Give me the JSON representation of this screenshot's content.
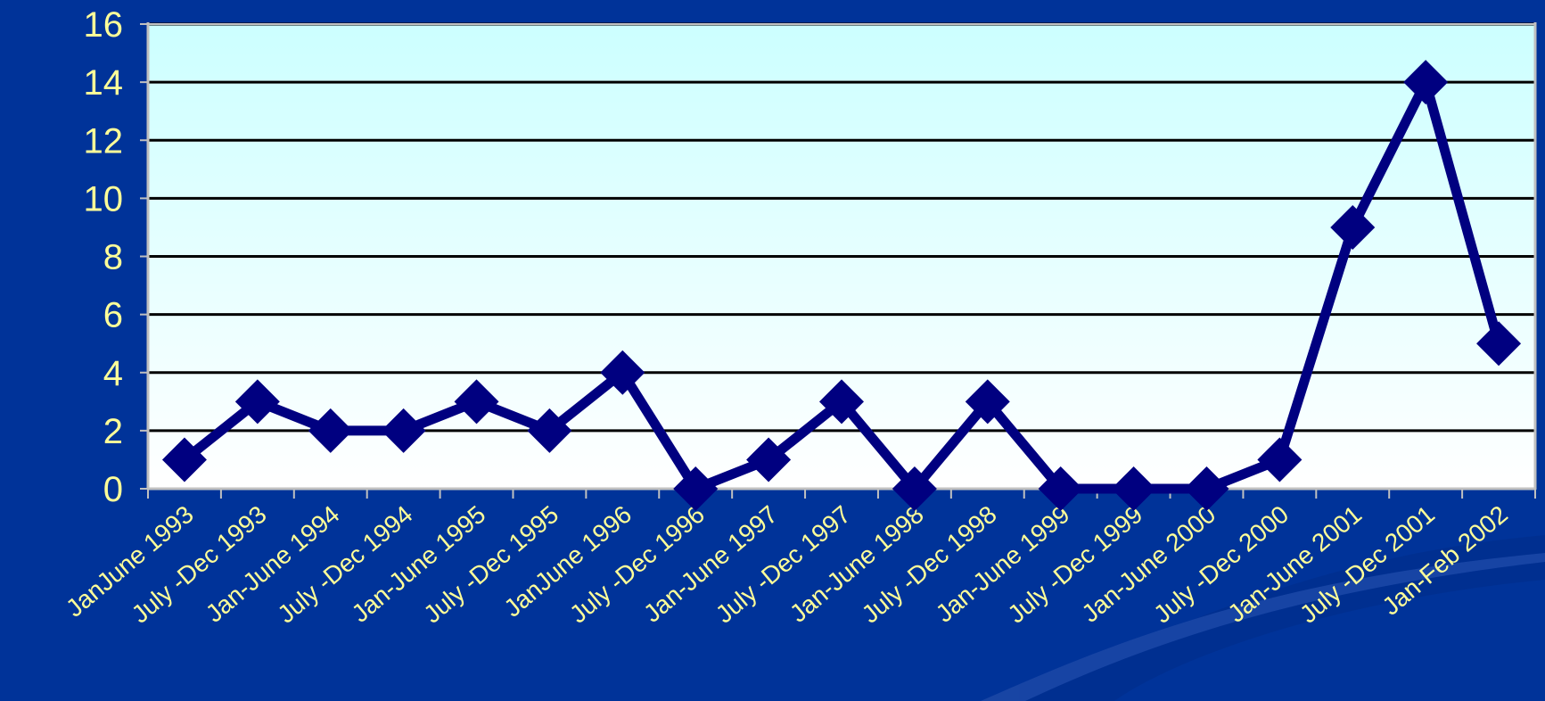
{
  "chart_data": {
    "type": "line",
    "title": "",
    "xlabel": "",
    "ylabel": "",
    "ylim": [
      0,
      16
    ],
    "yticks": [
      0,
      2,
      4,
      6,
      8,
      10,
      12,
      14,
      16
    ],
    "grid": true,
    "legend": "none",
    "categories": [
      "JanJune 1993",
      "July -Dec 1993",
      "Jan-June 1994",
      "July -Dec 1994",
      "Jan-June 1995",
      "July -Dec 1995",
      "JanJune 1996",
      "July -Dec 1996",
      "Jan-June 1997",
      "July -Dec 1997",
      "Jan-June 1998",
      "July -Dec 1998",
      "Jan-June 1999",
      "July -Dec 1999",
      "Jan-June 2000",
      "July -Dec 2000",
      "Jan-June 2001",
      "July -Dec 2001",
      "Jan-Feb 2002"
    ],
    "series": [
      {
        "values": [
          1,
          3,
          2,
          2,
          3,
          2,
          4,
          0,
          1,
          3,
          0,
          3,
          0,
          0,
          0,
          1,
          9,
          14,
          5
        ]
      }
    ],
    "colors": {
      "background": "#003399",
      "plot_top": "#ccffff",
      "plot_bottom": "#ffffff",
      "line": "#000080",
      "gridline": "#000000",
      "text": "#ffff99",
      "axis": "#c0c0c0"
    }
  }
}
